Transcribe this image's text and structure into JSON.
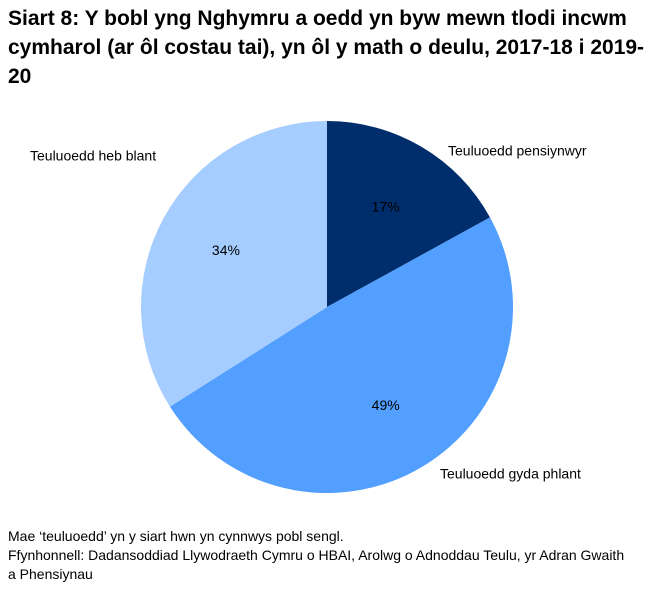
{
  "chart_data": {
    "type": "pie",
    "title": "Siart 8: Y bobl yng Nghymru a oedd yn byw mewn tlodi incwm cymharol (ar ôl costau tai), yn ôl y math o deulu, 2017-18 i 2019-20",
    "categories": [
      "Teuluoedd pensiynwyr",
      "Teuluoedd gyda phlant",
      "Teuluoedd heb blant"
    ],
    "values": [
      17,
      49,
      34
    ],
    "value_labels": [
      "17%",
      "49%",
      "34%"
    ],
    "colors": [
      "#002d6b",
      "#529fff",
      "#a5cdff"
    ],
    "notes": [
      "Mae ‘teuluoedd’ yn y siart hwn yn cynnwys pobl sengl.",
      "Ffynhonnell: Dadansoddiad Llywodraeth Cymru o HBAI, Arolwg o Adnoddau Teulu, yr Adran Gwaith a Phensiynau"
    ]
  }
}
